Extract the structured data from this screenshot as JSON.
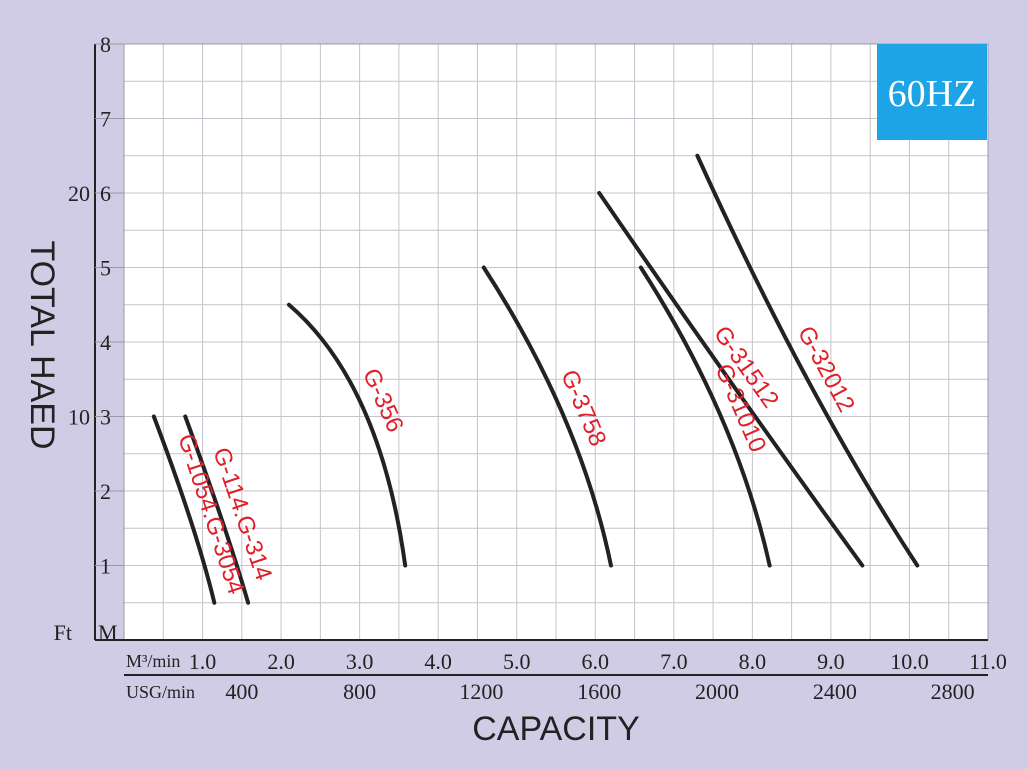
{
  "chart_data": {
    "type": "line",
    "badge": "60HZ",
    "badge_color": "#1da4e6",
    "curve_color": "#222222",
    "label_color": "#e0202a",
    "background_color": "#d1cce6",
    "xlabel": "CAPACITY",
    "ylabel": "TOTAL HAED",
    "xlim": [
      0.0,
      11.0
    ],
    "ylim": [
      0,
      8
    ],
    "grid": true,
    "x_ticks": [
      {
        "v": 1.0,
        "t": "1.0"
      },
      {
        "v": 2.0,
        "t": "2.0"
      },
      {
        "v": 3.0,
        "t": "3.0"
      },
      {
        "v": 4.0,
        "t": "4.0"
      },
      {
        "v": 5.0,
        "t": "5.0"
      },
      {
        "v": 6.0,
        "t": "6.0"
      },
      {
        "v": 7.0,
        "t": "7.0"
      },
      {
        "v": 8.0,
        "t": "8.0"
      },
      {
        "v": 9.0,
        "t": "9.0"
      },
      {
        "v": 10.0,
        "t": "10.0"
      },
      {
        "v": 11.0,
        "t": "11.0"
      }
    ],
    "x_unit": "M³/min",
    "x2_ticks": [
      {
        "v": 1.5,
        "t": "400"
      },
      {
        "v": 3.0,
        "t": "800"
      },
      {
        "v": 4.55,
        "t": "1200"
      },
      {
        "v": 6.05,
        "t": "1600"
      },
      {
        "v": 7.55,
        "t": "2000"
      },
      {
        "v": 9.05,
        "t": "2400"
      },
      {
        "v": 10.55,
        "t": "2800"
      }
    ],
    "x2_unit": "USG/min",
    "y_ticks": [
      {
        "v": 1,
        "t": "1"
      },
      {
        "v": 2,
        "t": "2"
      },
      {
        "v": 3,
        "t": "3"
      },
      {
        "v": 4,
        "t": "4"
      },
      {
        "v": 5,
        "t": "5"
      },
      {
        "v": 6,
        "t": "6"
      },
      {
        "v": 7,
        "t": "7"
      },
      {
        "v": 8,
        "t": "8"
      }
    ],
    "y_unit": "M",
    "y2_ticks": [
      {
        "v": 3,
        "t": "10"
      },
      {
        "v": 6,
        "t": "20"
      }
    ],
    "y2_unit": "Ft",
    "series": [
      {
        "name": "G-1054.G-3054",
        "points": [
          [
            0.38,
            3.0
          ],
          [
            0.85,
            1.6
          ],
          [
            1.15,
            0.5
          ]
        ]
      },
      {
        "name": "G-114.G-314",
        "points": [
          [
            0.78,
            3.0
          ],
          [
            1.25,
            1.6
          ],
          [
            1.58,
            0.5
          ]
        ]
      },
      {
        "name": "G-356",
        "points": [
          [
            2.1,
            4.5
          ],
          [
            3.05,
            3.1
          ],
          [
            3.58,
            1.0
          ]
        ]
      },
      {
        "name": "G-3758",
        "points": [
          [
            4.58,
            5.0
          ],
          [
            5.6,
            3.0
          ],
          [
            6.2,
            1.0
          ]
        ]
      },
      {
        "name": "G-31010",
        "points": [
          [
            6.58,
            5.0
          ],
          [
            7.6,
            3.0
          ],
          [
            8.22,
            1.0
          ]
        ]
      },
      {
        "name": "G-31512",
        "points": [
          [
            6.05,
            6.0
          ],
          [
            7.7,
            3.5
          ],
          [
            9.4,
            1.0
          ]
        ]
      },
      {
        "name": "G-32012",
        "points": [
          [
            7.3,
            6.5
          ],
          [
            8.7,
            3.5
          ],
          [
            10.1,
            1.0
          ]
        ]
      }
    ]
  }
}
